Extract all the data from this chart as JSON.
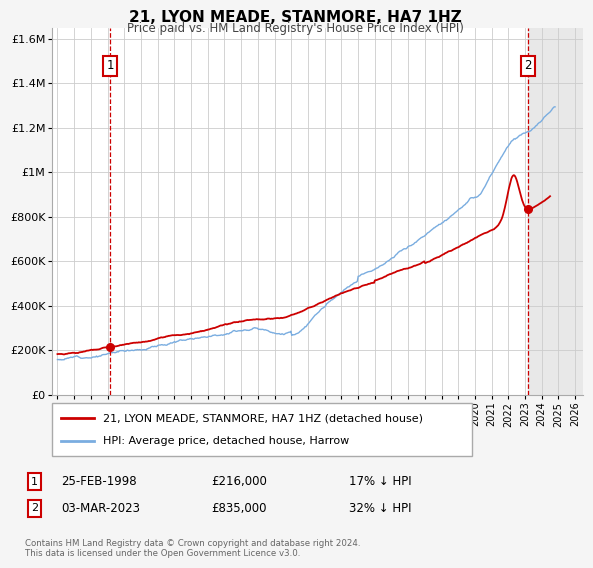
{
  "title": "21, LYON MEADE, STANMORE, HA7 1HZ",
  "subtitle": "Price paid vs. HM Land Registry's House Price Index (HPI)",
  "legend_line1": "21, LYON MEADE, STANMORE, HA7 1HZ (detached house)",
  "legend_line2": "HPI: Average price, detached house, Harrow",
  "marker1_date": "25-FEB-1998",
  "marker1_price": 216000,
  "marker1_note": "17% ↓ HPI",
  "marker2_date": "03-MAR-2023",
  "marker2_price": 835000,
  "marker2_note": "32% ↓ HPI",
  "marker1_year": 1998.15,
  "marker2_year": 2023.17,
  "copyright": "Contains HM Land Registry data © Crown copyright and database right 2024.\nThis data is licensed under the Open Government Licence v3.0.",
  "red_color": "#cc0000",
  "blue_color": "#7aade0",
  "background_color": "#f5f5f5",
  "plot_bg_color": "#ffffff",
  "grid_color": "#cccccc",
  "shaded_color": "#e8e8e8",
  "ylim": [
    0,
    1650000
  ],
  "xlim_start": 1994.7,
  "xlim_end": 2026.5,
  "shade_start": 2023.17,
  "shade_end": 2026.5
}
